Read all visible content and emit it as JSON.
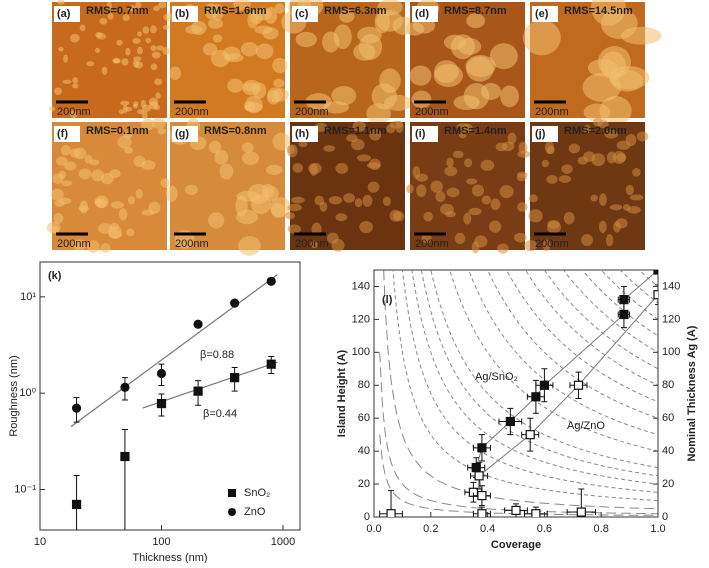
{
  "panels": [
    {
      "label": "(a)",
      "rms": "RMS=0.7nm",
      "scale": "200nm"
    },
    {
      "label": "(b)",
      "rms": "RMS=1.6nm",
      "scale": "200nm"
    },
    {
      "label": "(c)",
      "rms": "RMS=6.3nm",
      "scale": "200nm"
    },
    {
      "label": "(d)",
      "rms": "RMS=8.7nm",
      "scale": "200nm"
    },
    {
      "label": "(e)",
      "rms": "RMS=14.5nm",
      "scale": "200nm"
    },
    {
      "label": "(f)",
      "rms": "RMS=0.1nm",
      "scale": "200nm"
    },
    {
      "label": "(g)",
      "rms": "RMS=0.8nm",
      "scale": "200nm"
    },
    {
      "label": "(h)",
      "rms": "RMS=1.1nm",
      "scale": "200nm"
    },
    {
      "label": "(i)",
      "rms": "RMS=1.4nm",
      "scale": "200nm"
    },
    {
      "label": "(j)",
      "rms": "RMS=2.0nm",
      "scale": "200nm"
    }
  ],
  "chart_data": [
    {
      "type": "scatter",
      "title": "(k)",
      "x_label": "Thickness (nm)",
      "y_label": "Roughness (nm)",
      "log_x": true,
      "log_y": true,
      "xlim": [
        10,
        1380
      ],
      "ylim": [
        0.038,
        23
      ],
      "xticks": [
        10,
        100,
        1000
      ],
      "yticks": [
        {
          "value": 0.1,
          "label": "10⁻¹"
        },
        {
          "value": 1,
          "label": "10⁰"
        },
        {
          "value": 10,
          "label": "10¹"
        }
      ],
      "series": [
        {
          "name": "SnO₂",
          "marker": "square",
          "filled": true,
          "color": "#111",
          "x": [
            20,
            50,
            100,
            200,
            400,
            800
          ],
          "values": [
            0.07,
            0.22,
            0.78,
            1.05,
            1.45,
            2.0
          ],
          "yerr": [
            0.07,
            0.2,
            0.2,
            0.3,
            0.4,
            0.4
          ]
        },
        {
          "name": "ZnO",
          "marker": "circle",
          "filled": true,
          "color": "#111",
          "x": [
            20,
            50,
            100,
            200,
            400,
            800
          ],
          "values": [
            0.7,
            1.15,
            1.6,
            5.2,
            8.6,
            14.5
          ],
          "yerr": [
            0.2,
            0.3,
            0.4,
            0,
            0,
            0
          ]
        }
      ],
      "fits": [
        {
          "x": [
            18,
            900
          ],
          "values": [
            0.45,
            17
          ]
        },
        {
          "x": [
            70,
            900
          ],
          "values": [
            0.7,
            2.1
          ]
        }
      ],
      "annotations": [
        "β=0.88",
        "β=0.44"
      ]
    },
    {
      "type": "scatter",
      "title": "(l)",
      "x_label": "Coverage",
      "y_label": "Island Height (A)",
      "y2_label": "Nominal Thickness Ag (A)",
      "xlim": [
        0,
        1
      ],
      "ylim": [
        0,
        150
      ],
      "y2lim": [
        0,
        150
      ],
      "xticks": [
        {
          "value": 0,
          "label": "0.0"
        },
        0.2,
        0.4,
        0.6,
        0.8,
        {
          "value": 1,
          "label": "1.0"
        }
      ],
      "yticks": [
        0,
        20,
        40,
        60,
        80,
        100,
        120,
        140
      ],
      "y2ticks": [
        0,
        20,
        40,
        60,
        80,
        100,
        120,
        140
      ],
      "isolines": [
        1,
        2,
        5,
        10,
        15,
        20,
        25,
        30,
        40,
        50,
        60,
        70,
        80,
        90,
        100,
        110,
        120,
        130,
        140,
        150
      ],
      "series": [
        {
          "marker": "square",
          "filled": true,
          "line": true,
          "color": "#111",
          "x": [
            0.36,
            0.38,
            0.48,
            0.57,
            0.6,
            0.88,
            0.88,
            1.0
          ],
          "values": [
            30,
            42,
            58,
            73,
            80,
            123,
            132,
            150
          ],
          "yerr": [
            6,
            8,
            8,
            10,
            10,
            8,
            8,
            0
          ],
          "xerr": [
            0.03,
            0.03,
            0.04,
            0.03,
            0.03,
            0.02,
            0.02,
            0
          ]
        },
        {
          "marker": "square",
          "filled": false,
          "line": true,
          "color": "#111",
          "x": [
            0.35,
            0.38,
            0.37,
            0.55,
            0.72,
            1.0
          ],
          "values": [
            15,
            13,
            25,
            50,
            80,
            135
          ],
          "yerr": [
            6,
            6,
            8,
            10,
            8,
            6
          ],
          "xerr": [
            0.03,
            0.03,
            0.03,
            0.03,
            0.03,
            0
          ]
        },
        {
          "marker": "square",
          "filled": false,
          "line": false,
          "color": "#111",
          "x": [
            0.06,
            0.38,
            0.5,
            0.57,
            0.73
          ],
          "values": [
            2,
            2,
            4,
            2,
            3
          ],
          "yerr": [
            14,
            4,
            4,
            4,
            14
          ],
          "xerr": [
            0.04,
            0.03,
            0.04,
            0.04,
            0.05
          ]
        }
      ],
      "annotations": [
        "Ag/SnO₂",
        "Ag/ZnO"
      ]
    }
  ]
}
